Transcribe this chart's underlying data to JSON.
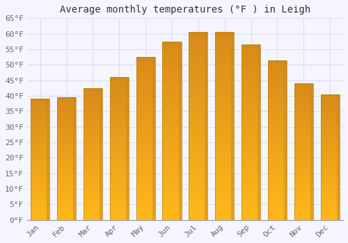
{
  "title": "Average monthly temperatures (°F ) in Leigh",
  "months": [
    "Jan",
    "Feb",
    "Mar",
    "Apr",
    "May",
    "Jun",
    "Jul",
    "Aug",
    "Sep",
    "Oct",
    "Nov",
    "Dec"
  ],
  "values": [
    39.0,
    39.5,
    42.5,
    46.0,
    52.5,
    57.5,
    60.5,
    60.5,
    56.5,
    51.5,
    44.0,
    40.5
  ],
  "bar_color_top": "#F5A623",
  "bar_color_bottom": "#FFD060",
  "bar_edge_color": "#C8891A",
  "background_color": "#F5F5FF",
  "grid_color": "#DDDDEE",
  "title_fontsize": 10,
  "tick_fontsize": 8,
  "ylim": [
    0,
    65
  ],
  "yticks": [
    0,
    5,
    10,
    15,
    20,
    25,
    30,
    35,
    40,
    45,
    50,
    55,
    60,
    65
  ],
  "bar_width": 0.72
}
